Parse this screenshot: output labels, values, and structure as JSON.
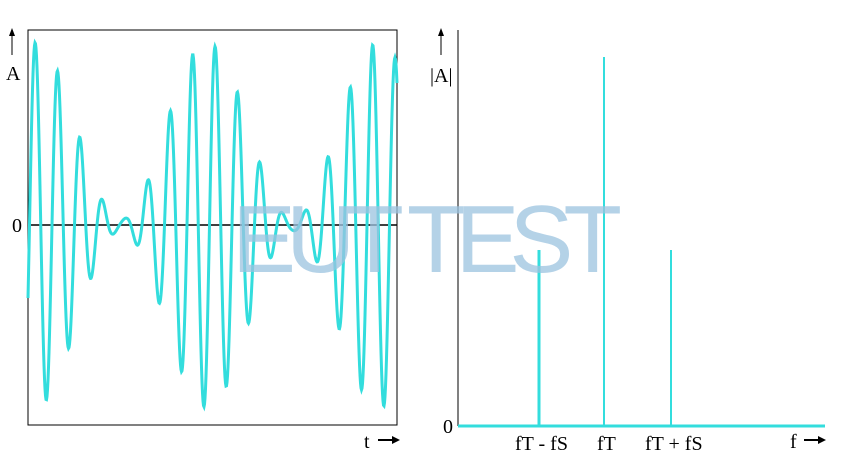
{
  "time_plot": {
    "y_label": "A",
    "zero_label": "0",
    "x_label": "t"
  },
  "spectrum_plot": {
    "y_label": "|A|",
    "zero_label": "0",
    "x_label": "f",
    "ticks": [
      "fT - fS",
      "fT",
      "fT + fS"
    ]
  },
  "watermark": "EUT TEST"
}
